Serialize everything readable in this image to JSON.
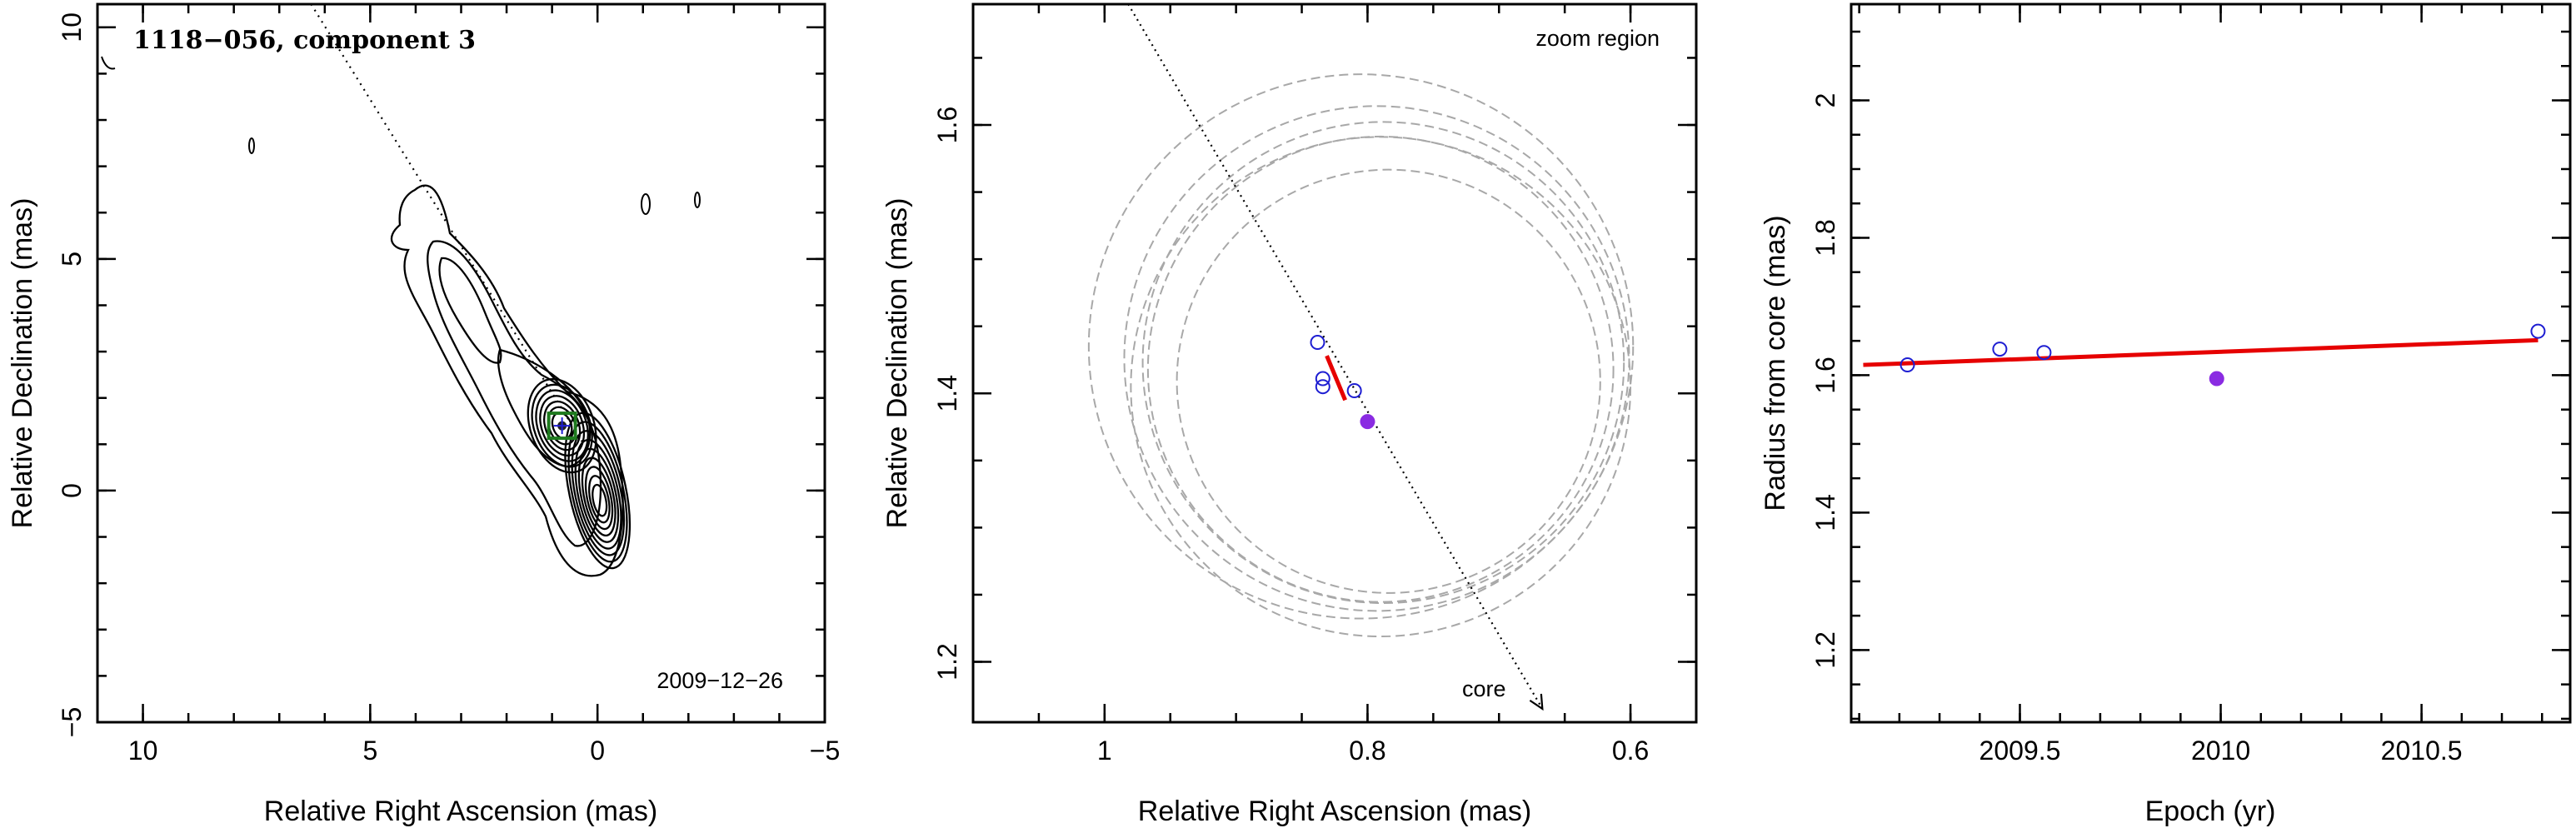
{
  "chart_data": [
    {
      "type": "contour map",
      "title": "1118−056, component 3",
      "date_label": "2009−12−26",
      "xlabel": "Relative Right Ascension (mas)",
      "ylabel": "Relative Declination (mas)",
      "xlim": [
        11,
        -5
      ],
      "ylim": [
        -5,
        10.5
      ],
      "xticks": [
        10,
        5,
        0,
        -5
      ],
      "xtick_labels": [
        "10",
        "5",
        "0",
        "−5"
      ],
      "yticks": [
        -5,
        0,
        5,
        10
      ],
      "ytick_labels": [
        "−5",
        "0",
        "5",
        "10"
      ],
      "core": {
        "x": 0.0,
        "y": 0.0
      },
      "component": {
        "x": 0.78,
        "y": 1.4
      },
      "jet_direction_line": {
        "x": [
          6.3,
          0.3
        ],
        "y": [
          10.5,
          1.0
        ]
      },
      "zoom_box_color": "#1e7a1e"
    },
    {
      "type": "scatter",
      "corner_label": "zoom region",
      "core_label": "core",
      "xlabel": "Relative Right Ascension (mas)",
      "ylabel": "Relative Declination (mas)",
      "xlim": [
        1.1,
        0.55
      ],
      "ylim": [
        1.155,
        1.69
      ],
      "xticks": [
        1.0,
        0.8,
        0.6
      ],
      "xtick_labels": [
        "1",
        "0.8",
        "0.6"
      ],
      "yticks": [
        1.2,
        1.4,
        1.6
      ],
      "ytick_labels": [
        "1.2",
        "1.4",
        "1.6"
      ],
      "open_points": {
        "x": [
          0.838,
          0.834,
          0.834,
          0.81
        ],
        "y": [
          1.438,
          1.411,
          1.405,
          1.402
        ],
        "color": "#1e1ed2"
      },
      "filled_point": {
        "x": 0.8,
        "y": 1.379,
        "color": "#8a2be2"
      },
      "fit_segment": {
        "x": [
          0.831,
          0.817
        ],
        "y": [
          1.428,
          1.395
        ],
        "color": "#e60000"
      },
      "core_direction_arrow": {
        "x": [
          0.982,
          0.667
        ],
        "y": [
          1.69,
          1.165
        ]
      },
      "error_circles": [
        {
          "cx": 0.805,
          "cy": 1.435,
          "r": 0.207
        },
        {
          "cx": 0.793,
          "cy": 1.426,
          "r": 0.192
        },
        {
          "cx": 0.788,
          "cy": 1.423,
          "r": 0.183
        },
        {
          "cx": 0.79,
          "cy": 1.418,
          "r": 0.177
        },
        {
          "cx": 0.79,
          "cy": 1.405,
          "r": 0.19
        },
        {
          "cx": 0.784,
          "cy": 1.409,
          "r": 0.161
        }
      ]
    },
    {
      "type": "scatter",
      "xlabel": "Epoch (yr)",
      "ylabel": "Radius from core (mas)",
      "xlim": [
        2009.08,
        2010.87
      ],
      "ylim": [
        1.095,
        2.14
      ],
      "xticks": [
        2009.5,
        2010.0,
        2010.5
      ],
      "xtick_labels": [
        "2009.5",
        "2010",
        "2010.5"
      ],
      "yticks": [
        1.2,
        1.4,
        1.6,
        1.8,
        2.0
      ],
      "ytick_labels": [
        "1.2",
        "1.4",
        "1.6",
        "1.8",
        "2"
      ],
      "open_points": {
        "x": [
          2009.22,
          2009.45,
          2009.56,
          2010.79
        ],
        "y": [
          1.615,
          1.638,
          1.633,
          1.664
        ],
        "color": "#1e1ed2"
      },
      "filled_point": {
        "x": 2009.99,
        "y": 1.595,
        "color": "#8a2be2"
      },
      "fit_line": {
        "x": [
          2009.11,
          2010.79
        ],
        "y": [
          1.615,
          1.651
        ],
        "color": "#e60000"
      }
    }
  ]
}
